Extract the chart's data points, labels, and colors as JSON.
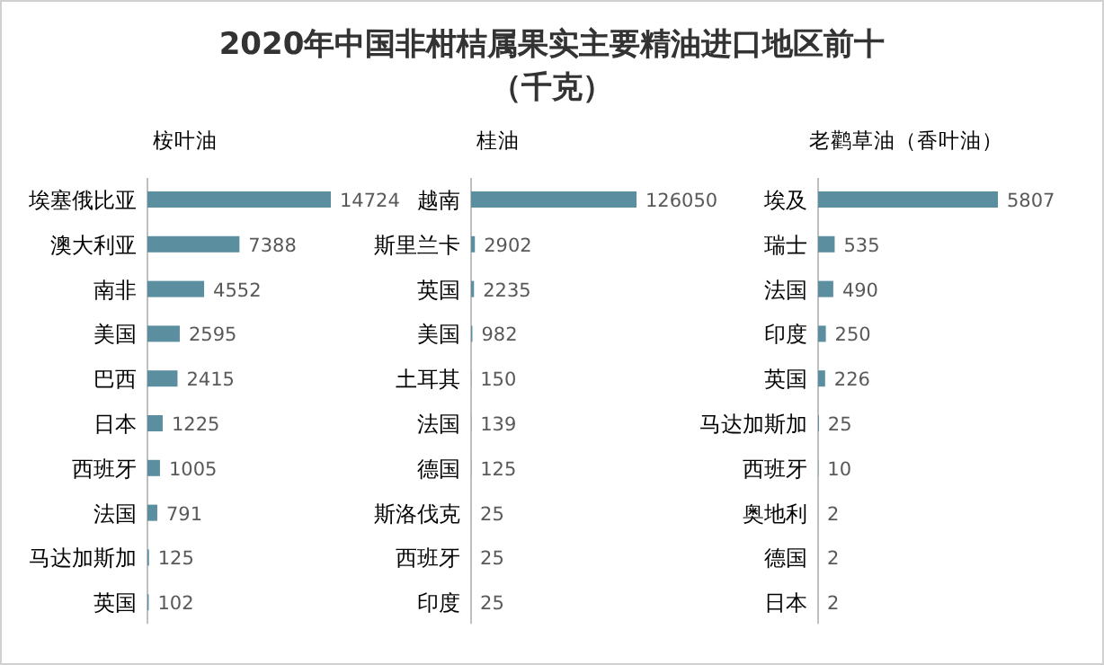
{
  "chart_data": [
    {
      "type": "bar",
      "orientation": "horizontal",
      "data_labels": true,
      "color": "#5b8fa0",
      "title": "2020年中国非柑桔属果实主要精油进口地区前十（千克）",
      "subtitle": "桉叶油",
      "categories": [
        "埃塞俄比亚",
        "澳大利亚",
        "南非",
        "美国",
        "巴西",
        "日本",
        "西班牙",
        "法国",
        "马达加斯加",
        "英国"
      ],
      "values": [
        14724,
        7388,
        4552,
        2595,
        2415,
        1225,
        1005,
        791,
        125,
        102
      ]
    },
    {
      "type": "bar",
      "orientation": "horizontal",
      "data_labels": true,
      "color": "#5b8fa0",
      "subtitle": "桂油",
      "categories": [
        "越南",
        "斯里兰卡",
        "英国",
        "美国",
        "土耳其",
        "法国",
        "德国",
        "斯洛伐克",
        "西班牙",
        "印度"
      ],
      "values": [
        126050,
        2902,
        2235,
        982,
        150,
        139,
        125,
        25,
        25,
        25
      ]
    },
    {
      "type": "bar",
      "orientation": "horizontal",
      "data_labels": true,
      "color": "#5b8fa0",
      "subtitle": "老鹳草油（香叶油）",
      "categories": [
        "埃及",
        "瑞士",
        "法国",
        "印度",
        "英国",
        "马达加斯加",
        "西班牙",
        "奥地利",
        "德国",
        "日本"
      ],
      "values": [
        5807,
        535,
        490,
        250,
        226,
        25,
        10,
        2,
        2,
        2
      ]
    }
  ]
}
